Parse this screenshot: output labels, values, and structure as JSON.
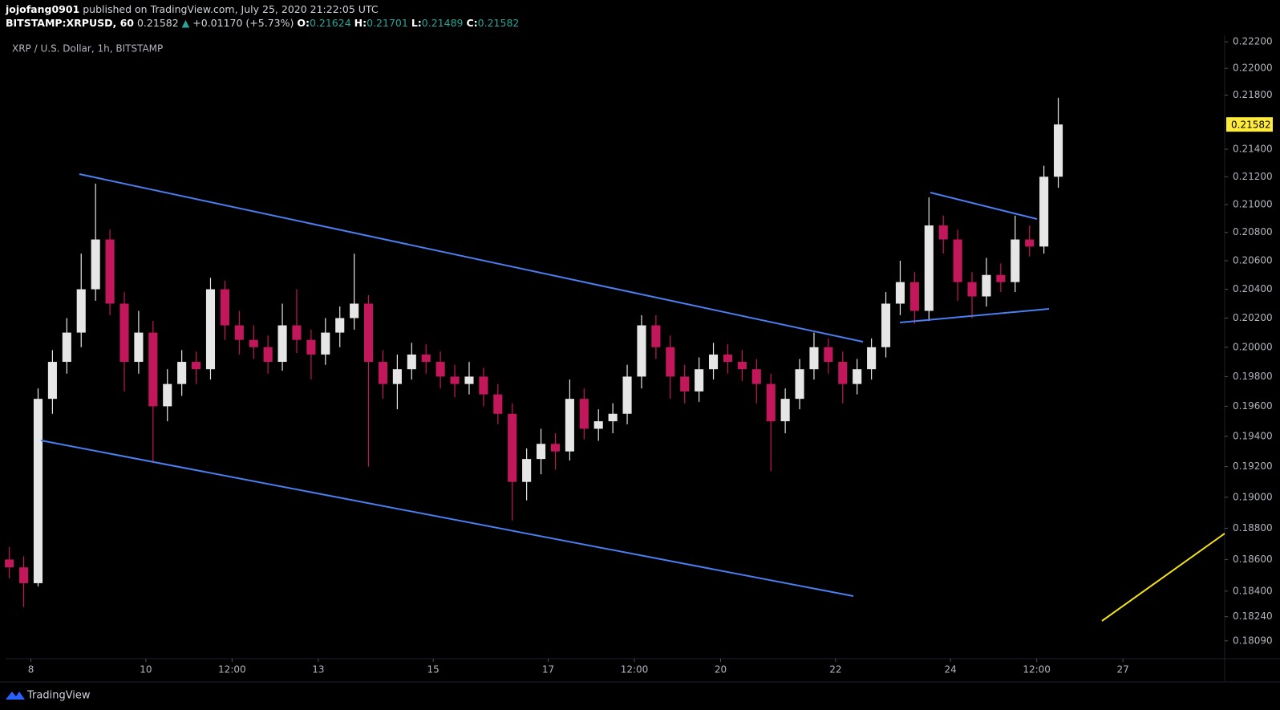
{
  "header": {
    "author": "jojofang0901",
    "published": "published on TradingView.com, July 25, 2020 21:22:05 UTC",
    "symbol": "BITSTAMP:XRPUSD, 60",
    "price": "0.21582",
    "arrow": "▲",
    "change": "+0.01170 (+5.73%)",
    "ohlc": [
      {
        "label": "O:",
        "value": "0.21624"
      },
      {
        "label": "H:",
        "value": "0.21701"
      },
      {
        "label": "L:",
        "value": "0.21489"
      },
      {
        "label": "C:",
        "value": "0.21582"
      }
    ]
  },
  "footer": {
    "brand": "TradingView"
  },
  "chart_data": {
    "type": "candlestick",
    "title": "XRP / U.S. Dollar, 1h, BITSTAMP",
    "up_color": "#e6e6e6",
    "down_color": "#c2185b",
    "log": true,
    "grid": false,
    "x": [
      7.625,
      7.875,
      8.125,
      8.375,
      8.625,
      8.875,
      9.125,
      9.375,
      9.625,
      9.875,
      10.125,
      10.375,
      10.625,
      10.875,
      11.125,
      11.375,
      11.625,
      11.875,
      12.125,
      12.375,
      12.625,
      12.875,
      13.125,
      13.375,
      13.625,
      13.875,
      14.125,
      14.375,
      14.625,
      14.875,
      15.125,
      15.375,
      15.625,
      15.875,
      16.125,
      16.375,
      16.625,
      16.875,
      17.125,
      17.375,
      17.625,
      17.875,
      18.125,
      18.375,
      18.625,
      18.875,
      19.125,
      19.375,
      19.625,
      19.875,
      20.125,
      20.375,
      20.625,
      20.875,
      21.125,
      21.375,
      21.625,
      21.875,
      22.125,
      22.375,
      22.625,
      22.875,
      23.125,
      23.375,
      23.625,
      23.875,
      24.125,
      24.375,
      24.625,
      24.875,
      25.125,
      25.375,
      25.625,
      25.875
    ],
    "open": [
      0.186,
      0.1855,
      0.1845,
      0.1965,
      0.199,
      0.201,
      0.204,
      0.2075,
      0.203,
      0.199,
      0.201,
      0.196,
      0.1975,
      0.199,
      0.1985,
      0.204,
      0.2015,
      0.2005,
      0.2,
      0.199,
      0.2015,
      0.2005,
      0.1995,
      0.201,
      0.202,
      0.203,
      0.199,
      0.1975,
      0.1985,
      0.1995,
      0.199,
      0.198,
      0.1975,
      0.198,
      0.1968,
      0.1955,
      0.191,
      0.1925,
      0.1935,
      0.193,
      0.1965,
      0.1945,
      0.195,
      0.1955,
      0.198,
      0.2015,
      0.2,
      0.198,
      0.197,
      0.1985,
      0.1995,
      0.199,
      0.1985,
      0.1975,
      0.195,
      0.1965,
      0.1985,
      0.2,
      0.199,
      0.1975,
      0.1985,
      0.2,
      0.203,
      0.2045,
      0.2025,
      0.2085,
      0.2075,
      0.2045,
      0.2035,
      0.205,
      0.2045,
      0.2075,
      0.207,
      0.212
    ],
    "high": [
      0.1868,
      0.1862,
      0.1972,
      0.1998,
      0.202,
      0.2065,
      0.2115,
      0.2082,
      0.2038,
      0.2025,
      0.2018,
      0.1985,
      0.1998,
      0.1997,
      0.2048,
      0.2046,
      0.2025,
      0.2015,
      0.2008,
      0.203,
      0.204,
      0.2012,
      0.202,
      0.2028,
      0.2065,
      0.2036,
      0.1998,
      0.1995,
      0.2003,
      0.2002,
      0.1997,
      0.1988,
      0.199,
      0.1986,
      0.1975,
      0.1962,
      0.1932,
      0.1945,
      0.1942,
      0.1978,
      0.1972,
      0.1958,
      0.1962,
      0.1988,
      0.2022,
      0.2022,
      0.2008,
      0.1988,
      0.1993,
      0.2003,
      0.2002,
      0.1998,
      0.1992,
      0.1982,
      0.1972,
      0.1992,
      0.201,
      0.2006,
      0.1997,
      0.1992,
      0.2006,
      0.2038,
      0.206,
      0.2052,
      0.2105,
      0.2092,
      0.2082,
      0.2052,
      0.2062,
      0.2058,
      0.2092,
      0.2085,
      0.2128,
      0.2178
    ],
    "low": [
      0.1848,
      0.183,
      0.1843,
      0.1955,
      0.1982,
      0.2,
      0.2032,
      0.2022,
      0.197,
      0.1982,
      0.1923,
      0.195,
      0.1967,
      0.1975,
      0.1978,
      0.2005,
      0.1995,
      0.1992,
      0.1982,
      0.1984,
      0.1996,
      0.1978,
      0.1988,
      0.2,
      0.2012,
      0.192,
      0.1965,
      0.1958,
      0.1978,
      0.1982,
      0.1972,
      0.1966,
      0.1968,
      0.196,
      0.1948,
      0.1885,
      0.1898,
      0.1915,
      0.1918,
      0.1924,
      0.1938,
      0.1937,
      0.1942,
      0.1948,
      0.1972,
      0.1992,
      0.1965,
      0.1962,
      0.1963,
      0.1978,
      0.1982,
      0.1977,
      0.1962,
      0.1917,
      0.1942,
      0.1958,
      0.1978,
      0.1982,
      0.1962,
      0.1968,
      0.1978,
      0.1993,
      0.2022,
      0.2016,
      0.2018,
      0.2065,
      0.2032,
      0.202,
      0.2028,
      0.2038,
      0.2038,
      0.2063,
      0.2065,
      0.2112
    ],
    "close": [
      0.1855,
      0.1845,
      0.1965,
      0.199,
      0.201,
      0.204,
      0.2075,
      0.203,
      0.199,
      0.201,
      0.196,
      0.1975,
      0.199,
      0.1985,
      0.204,
      0.2015,
      0.2005,
      0.2,
      0.199,
      0.2015,
      0.2005,
      0.1995,
      0.201,
      0.202,
      0.203,
      0.199,
      0.1975,
      0.1985,
      0.1995,
      0.199,
      0.198,
      0.1975,
      0.198,
      0.1968,
      0.1955,
      0.191,
      0.1925,
      0.1935,
      0.193,
      0.1965,
      0.1945,
      0.195,
      0.1955,
      0.198,
      0.2015,
      0.2,
      0.198,
      0.197,
      0.1985,
      0.1995,
      0.199,
      0.1985,
      0.1975,
      0.195,
      0.1965,
      0.1985,
      0.2,
      0.199,
      0.1975,
      0.1985,
      0.2,
      0.203,
      0.2045,
      0.2025,
      0.2085,
      0.2075,
      0.2045,
      0.2035,
      0.205,
      0.2045,
      0.2075,
      0.207,
      0.212,
      0.21582
    ],
    "xlim": [
      7.56,
      28.77
    ],
    "xticks": [
      8,
      10,
      {
        "value": 11.5,
        "label": "12:00"
      },
      13,
      15,
      17,
      {
        "value": 18.5,
        "label": "12:00"
      },
      20,
      22,
      24,
      {
        "value": 25.5,
        "label": "12:00"
      },
      27
    ],
    "ylim": [
      0.1799,
      0.2225
    ],
    "yticks": [
      {
        "value": 0.222,
        "label": "0.22200"
      },
      {
        "value": 0.22,
        "label": "0.22000"
      },
      {
        "value": 0.218,
        "label": "0.21800"
      },
      {
        "value": 0.214,
        "label": "0.21400"
      },
      {
        "value": 0.212,
        "label": "0.21200"
      },
      {
        "value": 0.21,
        "label": "0.21000"
      },
      {
        "value": 0.208,
        "label": "0.20800"
      },
      {
        "value": 0.206,
        "label": "0.20600"
      },
      {
        "value": 0.204,
        "label": "0.20400"
      },
      {
        "value": 0.202,
        "label": "0.20200"
      },
      {
        "value": 0.2,
        "label": "0.20000"
      },
      {
        "value": 0.198,
        "label": "0.19800"
      },
      {
        "value": 0.196,
        "label": "0.19600"
      },
      {
        "value": 0.194,
        "label": "0.19400"
      },
      {
        "value": 0.192,
        "label": "0.19200"
      },
      {
        "value": 0.19,
        "label": "0.19000"
      },
      {
        "value": 0.188,
        "label": "0.18800"
      },
      {
        "value": 0.186,
        "label": "0.18600"
      },
      {
        "value": 0.184,
        "label": "0.18400"
      },
      {
        "value": 0.1824,
        "label": "0.18240"
      },
      {
        "value": 0.1809,
        "label": "0.18090"
      }
    ]
  }
}
